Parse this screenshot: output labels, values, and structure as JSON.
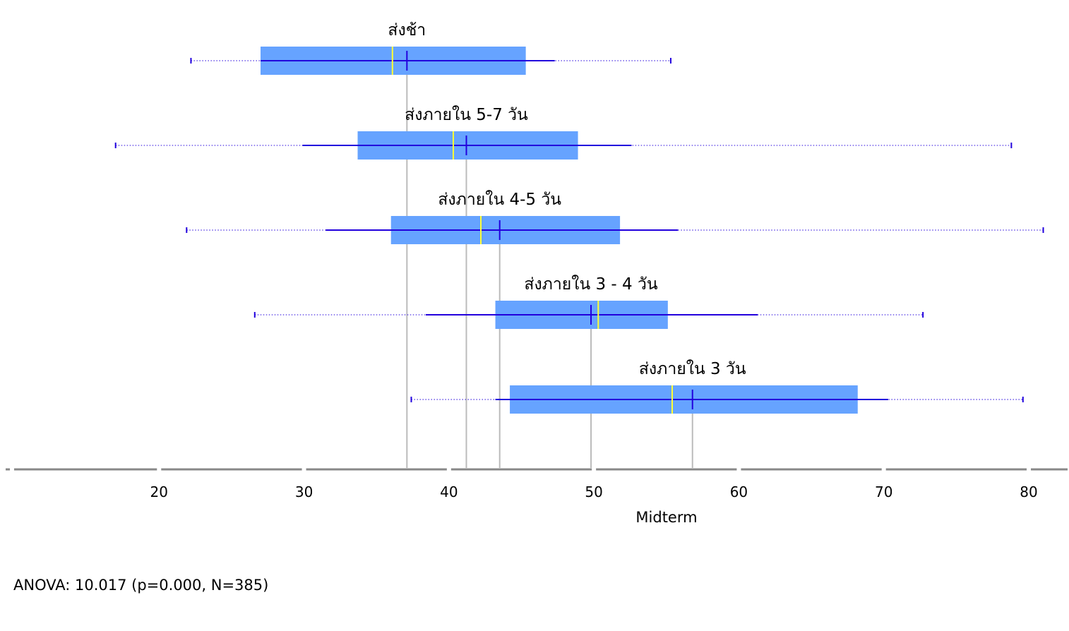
{
  "chart_data": {
    "type": "boxplot",
    "xlabel": "Midterm",
    "xlim": [
      10,
      82
    ],
    "xticks": [
      20,
      30,
      40,
      50,
      60,
      70,
      80
    ],
    "colors": {
      "box": "#66a3ff",
      "whisker": "#2200dd",
      "median": "#ffff33",
      "mean_line": "#bbbbbb",
      "axis": "#888888"
    },
    "groups": [
      {
        "name": "ส่งช้า",
        "min": 22.2,
        "whisker_low": 27.0,
        "q1": 27.0,
        "median": 36.1,
        "mean": 37.1,
        "q3": 45.3,
        "whisker_high": 47.3,
        "max": 55.3,
        "sd_low": 27.0,
        "sd_high": 47.3
      },
      {
        "name": "ส่งภายใน 5-7 วัน",
        "min": 17.0,
        "whisker_low": 29.9,
        "q1": 33.7,
        "median": 40.3,
        "mean": 41.2,
        "q3": 48.9,
        "whisker_high": 52.6,
        "max": 78.8
      },
      {
        "name": "ส่งภายใน 4-5 วัน",
        "min": 21.9,
        "whisker_low": 31.5,
        "q1": 36.0,
        "median": 42.2,
        "mean": 43.5,
        "q3": 51.8,
        "whisker_high": 55.8,
        "max": 81.0
      },
      {
        "name": "ส่งภายใน 3 - 4 วัน",
        "min": 26.6,
        "whisker_low": 38.4,
        "q1": 43.2,
        "median": 50.3,
        "mean": 49.8,
        "q3": 55.1,
        "whisker_high": 61.3,
        "max": 72.7
      },
      {
        "name": "ส่งภายใน 3 วัน",
        "min": 37.4,
        "whisker_low": 43.2,
        "q1": 44.2,
        "median": 55.4,
        "mean": 56.8,
        "q3": 68.2,
        "whisker_high": 70.3,
        "max": 79.6
      }
    ]
  },
  "stats_text": "ANOVA: 10.017 (p=0.000, N=385)"
}
